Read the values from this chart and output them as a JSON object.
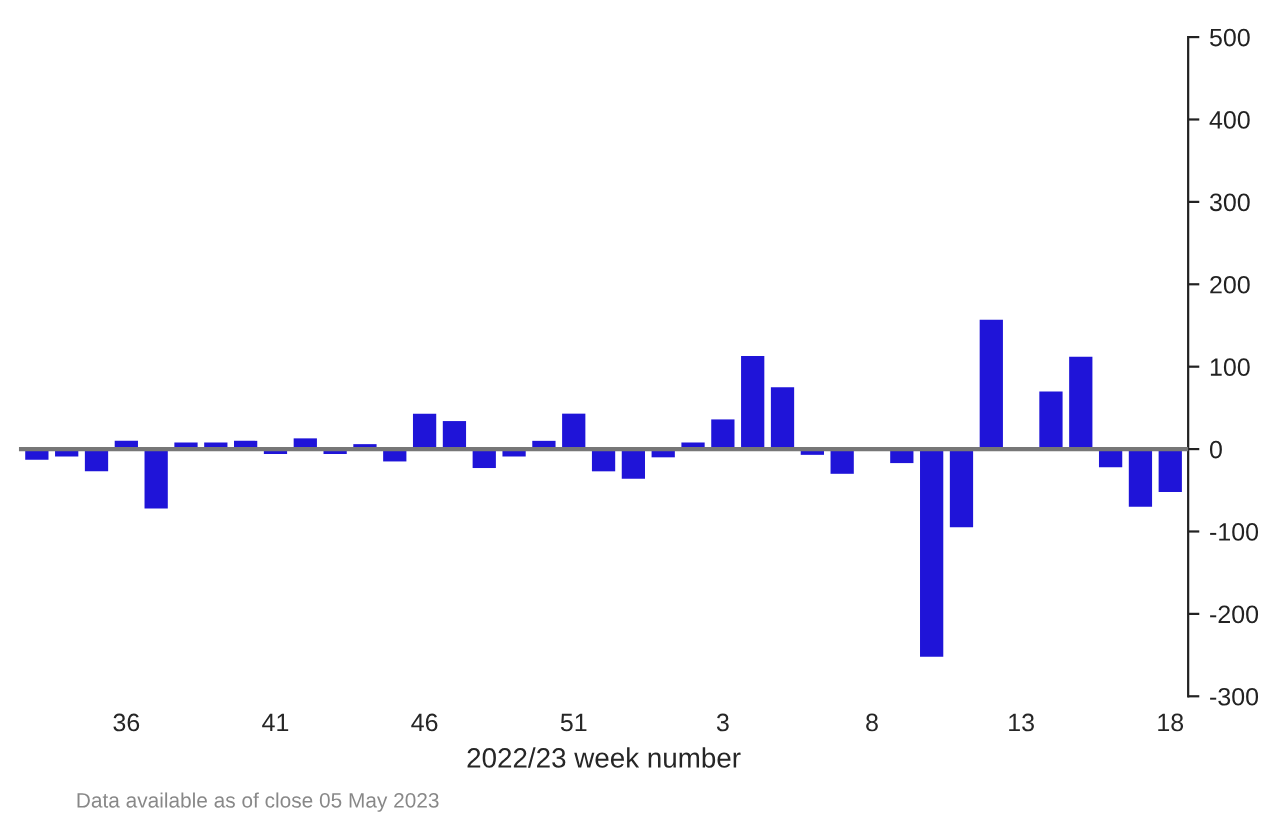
{
  "chart_data": {
    "type": "bar",
    "categories": [
      null,
      null,
      null,
      "36",
      null,
      null,
      null,
      null,
      "41",
      null,
      null,
      null,
      null,
      "46",
      null,
      null,
      null,
      null,
      "51",
      null,
      null,
      null,
      null,
      "3",
      null,
      null,
      null,
      null,
      "8",
      null,
      null,
      null,
      null,
      "13",
      null,
      null,
      null,
      null,
      "18"
    ],
    "values": [
      -13,
      -9,
      -27,
      10,
      -72,
      8,
      8,
      10,
      -6,
      13,
      -6,
      6,
      -15,
      43,
      34,
      -23,
      -9,
      10,
      43,
      -27,
      -36,
      -10,
      8,
      36,
      113,
      75,
      -7,
      -30,
      0,
      -17,
      -252,
      -95,
      157,
      2,
      70,
      112,
      -22,
      -70,
      -52
    ],
    "color": "#1f14d8",
    "xlabel": "2022/23 week number",
    "ylim": [
      -300,
      500
    ],
    "yticks": [
      -300,
      -200,
      -100,
      0,
      100,
      200,
      300,
      400,
      500
    ],
    "grid": false,
    "ref_lines": [
      {
        "axis": "y",
        "value": 0,
        "color": "#777777"
      }
    ],
    "annotations": [
      "Data available as of close 05 May 2023"
    ]
  }
}
